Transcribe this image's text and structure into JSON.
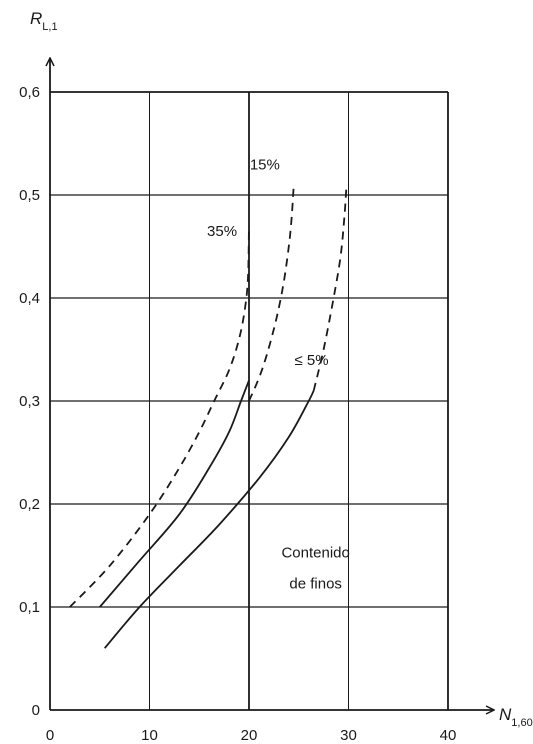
{
  "chart_data": {
    "type": "line",
    "title": "",
    "ylabel_main": "R",
    "ylabel_sub": "L,1",
    "xlabel_main": "N",
    "xlabel_sub": "1,60",
    "xlim": [
      0,
      40
    ],
    "ylim": [
      0,
      0.6
    ],
    "x_ticks": [
      0,
      10,
      20,
      30,
      40
    ],
    "x_tick_labels": [
      "0",
      "10",
      "20",
      "30",
      "40"
    ],
    "y_ticks": [
      0,
      0.1,
      0.2,
      0.3,
      0.4,
      0.5,
      0.6
    ],
    "y_tick_labels": [
      "0",
      "0,1",
      "0,2",
      "0,3",
      "0,4",
      "0,5",
      "0,6"
    ],
    "grid": true,
    "series": [
      {
        "name": "35%",
        "style": "dashed",
        "x": [
          2,
          6,
          10,
          13,
          15,
          16.5,
          18,
          19,
          19.6,
          19.9,
          20
        ],
        "y": [
          0.1,
          0.14,
          0.19,
          0.235,
          0.27,
          0.3,
          0.33,
          0.36,
          0.39,
          0.42,
          0.47
        ]
      },
      {
        "name": "",
        "style": "solid",
        "x": [
          5,
          9,
          13,
          16,
          18,
          19.2,
          20
        ],
        "y": [
          0.1,
          0.145,
          0.19,
          0.235,
          0.27,
          0.3,
          0.32
        ]
      },
      {
        "name": "15%",
        "style": "dashed",
        "x": [
          20,
          21.3,
          22.5,
          23.4,
          24,
          24.3,
          24.5
        ],
        "y": [
          0.3,
          0.33,
          0.37,
          0.41,
          0.45,
          0.48,
          0.51
        ]
      },
      {
        "name": "≤ 5%",
        "style": "solid",
        "x": [
          5.5,
          9,
          13,
          17,
          21,
          24,
          26,
          26.5
        ],
        "y": [
          0.06,
          0.1,
          0.14,
          0.18,
          0.225,
          0.265,
          0.3,
          0.31
        ]
      },
      {
        "name": "",
        "style": "dashed",
        "x": [
          26.5,
          27.5,
          28.5,
          29.2,
          29.6,
          29.8
        ],
        "y": [
          0.31,
          0.35,
          0.4,
          0.44,
          0.48,
          0.51
        ]
      }
    ],
    "annotations": [
      {
        "text": "35%",
        "x": 18.8,
        "y": 0.46
      },
      {
        "text": "15%",
        "x": 23.1,
        "y": 0.525
      },
      {
        "text": "≤ 5%",
        "x": 28.0,
        "y": 0.335
      },
      {
        "text": "Contenido",
        "x": 26.7,
        "y": 0.148
      },
      {
        "text": "de finos",
        "x": 26.7,
        "y": 0.118
      }
    ]
  }
}
